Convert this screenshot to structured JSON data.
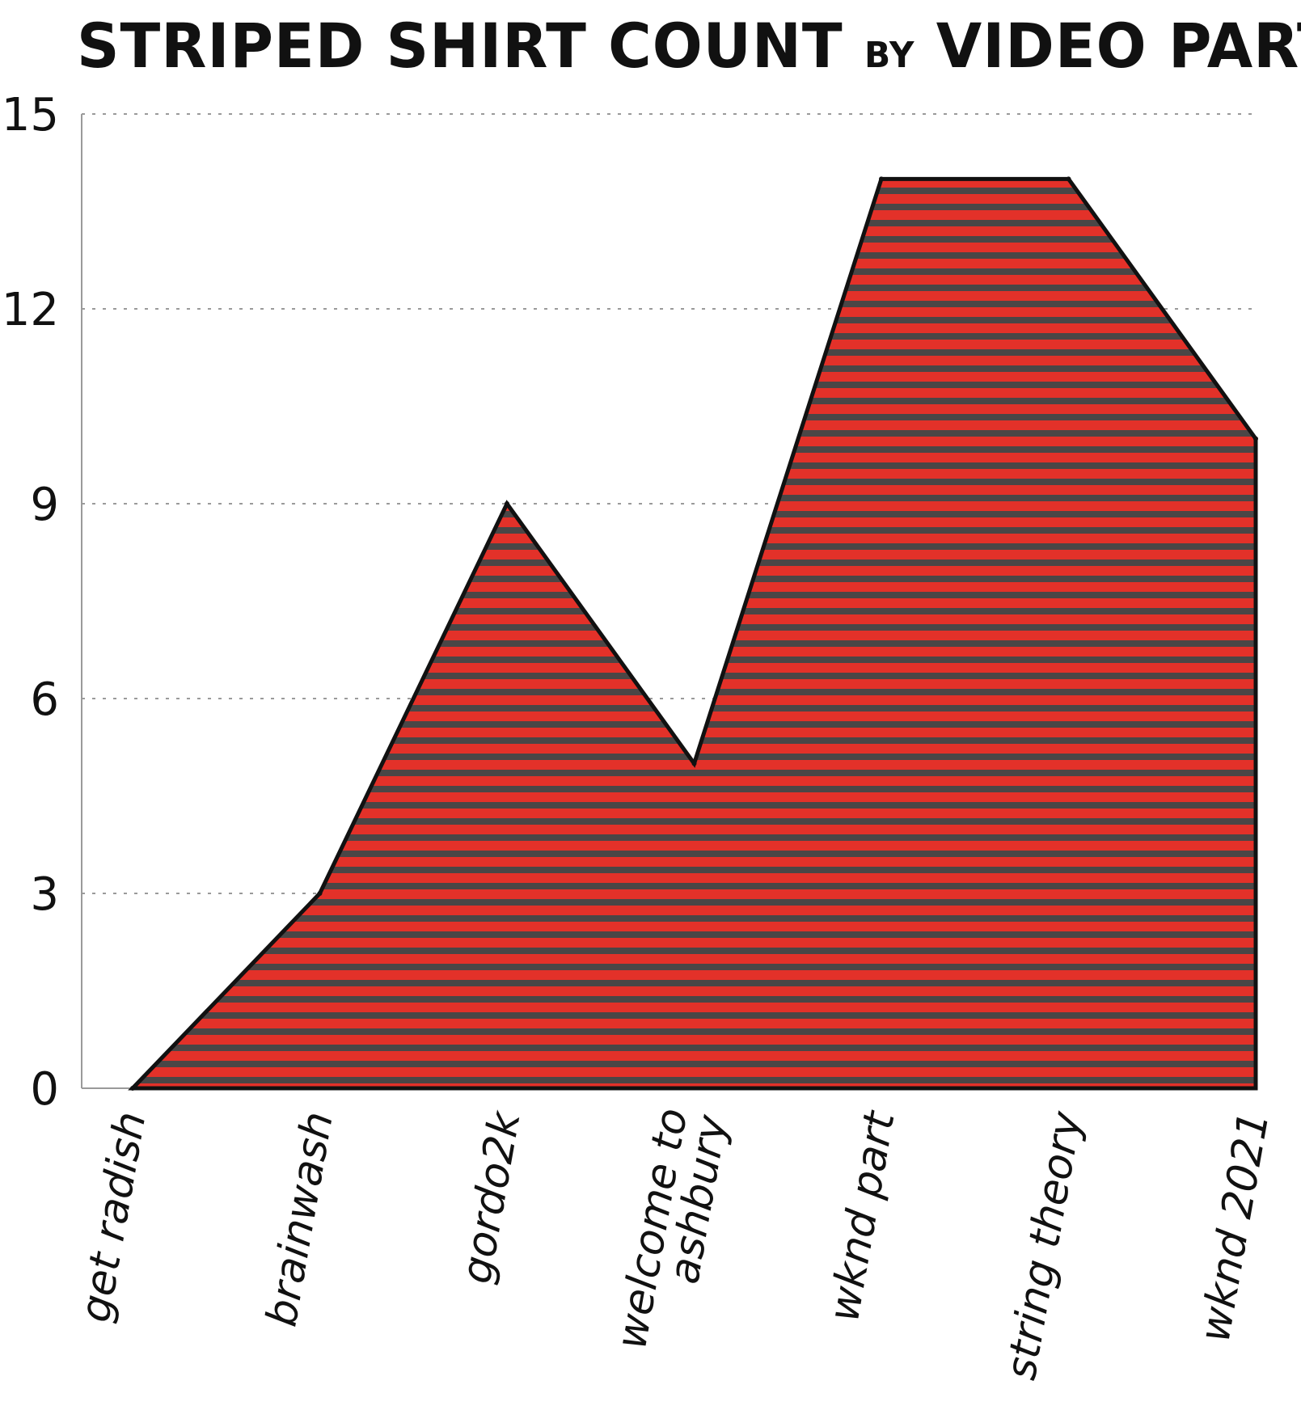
{
  "chart_data": {
    "type": "area",
    "title": "STRIPED SHIRT COUNT",
    "title_connector": "BY",
    "title_end": "VIDEO PART",
    "categories": [
      "get radish",
      "brainwash",
      "gordo2k",
      "welcome to ashbury",
      "wknd part",
      "string theory",
      "wknd 2021"
    ],
    "category_lines": [
      [
        "get radish"
      ],
      [
        "brainwash"
      ],
      [
        "gordo2k"
      ],
      [
        "welcome to",
        "ashbury"
      ],
      [
        "wknd part"
      ],
      [
        "string theory"
      ],
      [
        "wknd 2021"
      ]
    ],
    "values": [
      0,
      3,
      9,
      5,
      14,
      14,
      10
    ],
    "ylim": [
      0,
      15
    ],
    "yticks": [
      0,
      3,
      6,
      9,
      12,
      15
    ],
    "grid": true,
    "colors": {
      "fill_red": "#e33129",
      "stripe_dark": "#4a4646",
      "outline": "#111111",
      "grid": "#9a9a9a"
    }
  }
}
